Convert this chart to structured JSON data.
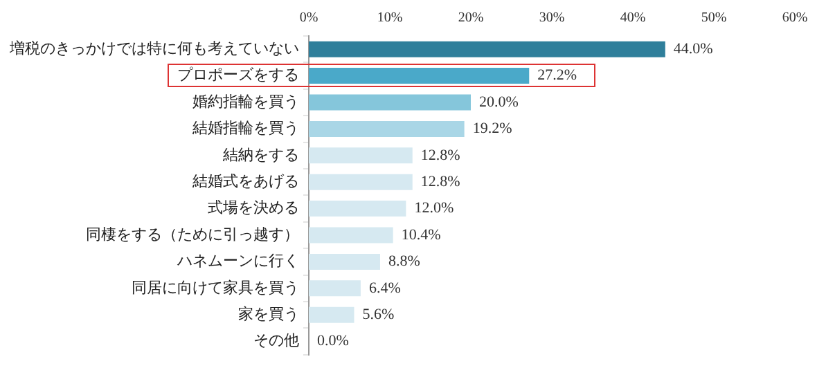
{
  "chart_data": {
    "type": "bar",
    "orientation": "horizontal",
    "categories": [
      "増税のきっかけでは特に何も考えていない",
      "プロポーズをする",
      "婚約指輪を買う",
      "結婚指輪を買う",
      "結納をする",
      "結婚式をあげる",
      "式場を決める",
      "同棲をする（ために引っ越す）",
      "ハネムーンに行く",
      "同居に向けて家具を買う",
      "家を買う",
      "その他"
    ],
    "values": [
      44.0,
      27.2,
      20.0,
      19.2,
      12.8,
      12.8,
      12.0,
      10.4,
      8.8,
      6.4,
      5.6,
      0.0
    ],
    "colors": [
      "#2f7f9b",
      "#4aa9c9",
      "#85c6db",
      "#a9d6e6",
      "#d6e9f1",
      "#d6e9f1",
      "#d6e9f1",
      "#d6e9f1",
      "#d6e9f1",
      "#d6e9f1",
      "#d6e9f1",
      "#d6e9f1"
    ],
    "value_labels": [
      "44.0%",
      "27.2%",
      "20.0%",
      "19.2%",
      "12.8%",
      "12.8%",
      "12.0%",
      "10.4%",
      "8.8%",
      "6.4%",
      "5.6%",
      "0.0%"
    ],
    "xlim": [
      0,
      60
    ],
    "xticks": [
      {
        "value": 0,
        "label": "0%"
      },
      {
        "value": 10,
        "label": "10%"
      },
      {
        "value": 20,
        "label": "20%"
      },
      {
        "value": 30,
        "label": "30%"
      },
      {
        "value": 40,
        "label": "40%"
      },
      {
        "value": 50,
        "label": "50%"
      },
      {
        "value": 60,
        "label": "60%"
      }
    ],
    "grid": false,
    "legend": false
  }
}
